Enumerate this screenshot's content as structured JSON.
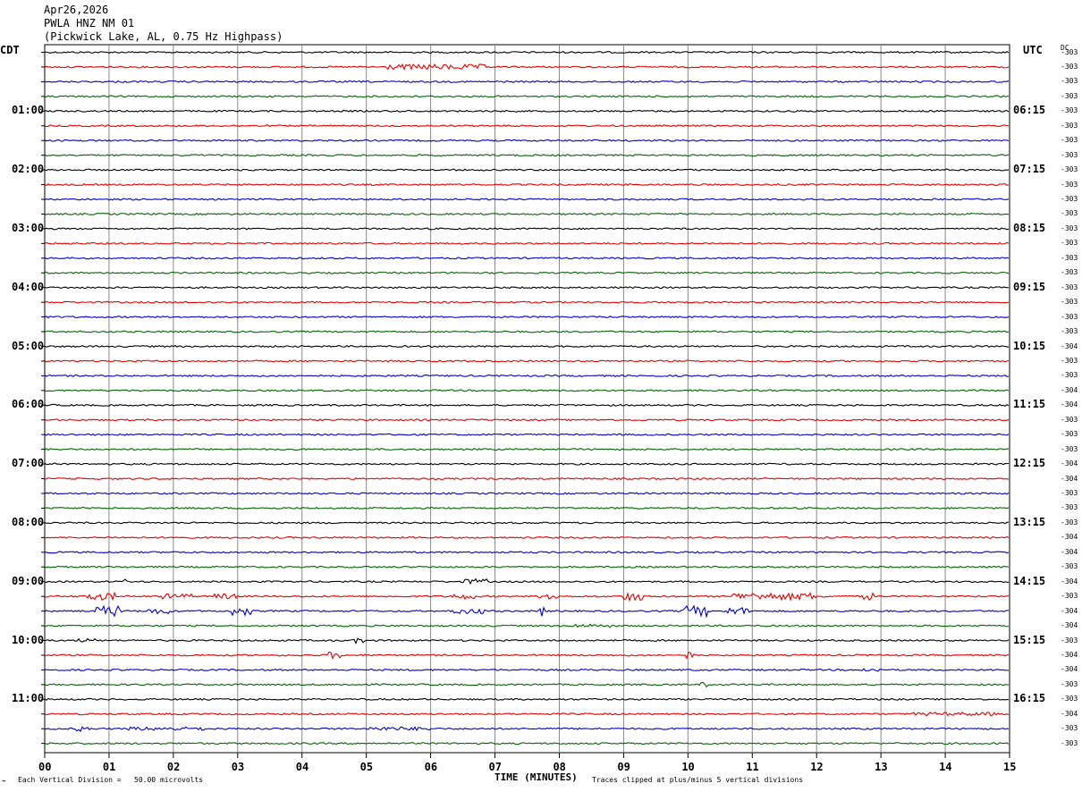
{
  "header": {
    "date": "Apr26,2026",
    "station": "PWLA HNZ NM 01",
    "location": "(Pickwick Lake, AL, 0.75 Hz Highpass)"
  },
  "left_tz": "CDT",
  "right_tz": "UTC",
  "dc_label": "DC",
  "footer": {
    "left": "Each Vertical Division =   50.00 microvolts",
    "center": "TIME (MINUTES)",
    "right": "Traces clipped at plus/minus 5 vertical divisions"
  },
  "colors": {
    "black": "#000000",
    "red": "#e00000",
    "blue": "#0000c8",
    "green": "#006400",
    "grid": "#888888"
  },
  "chart_data": {
    "type": "line",
    "title": "",
    "xlabel": "TIME (MINUTES)",
    "x_ticks": [
      "00",
      "01",
      "02",
      "03",
      "04",
      "05",
      "06",
      "07",
      "08",
      "09",
      "10",
      "11",
      "12",
      "13",
      "14",
      "15"
    ],
    "xlim": [
      0,
      15
    ],
    "trace_colors": [
      "black",
      "red",
      "blue",
      "green"
    ],
    "left_hour_labels": [
      "01:00",
      "02:00",
      "03:00",
      "04:00",
      "05:00",
      "06:00",
      "07:00",
      "08:00",
      "09:00",
      "10:00",
      "11:00"
    ],
    "right_hour_labels": [
      "06:15",
      "07:15",
      "08:15",
      "09:15",
      "10:15",
      "11:15",
      "12:15",
      "13:15",
      "14:15",
      "15:15",
      "16:15"
    ],
    "dc_offsets": [
      "-303",
      "-303",
      "-303",
      "-303",
      "-303",
      "-303",
      "-303",
      "-303",
      "-303",
      "-303",
      "-303",
      "-303",
      "-303",
      "-303",
      "-303",
      "-303",
      "-303",
      "-303",
      "-303",
      "-303",
      "-304",
      "-303",
      "-303",
      "-304",
      "-304",
      "-303",
      "-303",
      "-303",
      "-304",
      "-304",
      "-303",
      "-303",
      "-303",
      "-304",
      "-304",
      "-303",
      "-304",
      "-303",
      "-304",
      "-304",
      "-303",
      "-304",
      "-304",
      "-303",
      "-303",
      "-304",
      "-303",
      "-303"
    ],
    "events": [
      {
        "trace": 1,
        "start_min": 5.3,
        "end_min": 6.9,
        "amplitude": 3
      },
      {
        "trace": 36,
        "start_min": 1.2,
        "end_min": 1.3,
        "amplitude": 3
      },
      {
        "trace": 36,
        "start_min": 6.5,
        "end_min": 6.9,
        "amplitude": 3
      },
      {
        "trace": 37,
        "start_min": 0.6,
        "end_min": 1.1,
        "amplitude": 4
      },
      {
        "trace": 37,
        "start_min": 1.8,
        "end_min": 2.3,
        "amplitude": 3
      },
      {
        "trace": 37,
        "start_min": 2.6,
        "end_min": 3.0,
        "amplitude": 3
      },
      {
        "trace": 37,
        "start_min": 6.3,
        "end_min": 6.7,
        "amplitude": 3
      },
      {
        "trace": 37,
        "start_min": 7.7,
        "end_min": 8.0,
        "amplitude": 4
      },
      {
        "trace": 37,
        "start_min": 9.0,
        "end_min": 9.3,
        "amplitude": 5
      },
      {
        "trace": 37,
        "start_min": 10.7,
        "end_min": 11.2,
        "amplitude": 4
      },
      {
        "trace": 37,
        "start_min": 11.2,
        "end_min": 12.0,
        "amplitude": 4
      },
      {
        "trace": 37,
        "start_min": 12.7,
        "end_min": 12.9,
        "amplitude": 4
      },
      {
        "trace": 38,
        "start_min": 0.8,
        "end_min": 1.2,
        "amplitude": 6
      },
      {
        "trace": 38,
        "start_min": 1.6,
        "end_min": 2.0,
        "amplitude": 3
      },
      {
        "trace": 38,
        "start_min": 2.9,
        "end_min": 3.2,
        "amplitude": 5
      },
      {
        "trace": 38,
        "start_min": 6.3,
        "end_min": 6.9,
        "amplitude": 3
      },
      {
        "trace": 38,
        "start_min": 7.7,
        "end_min": 7.8,
        "amplitude": 6
      },
      {
        "trace": 38,
        "start_min": 9.9,
        "end_min": 10.3,
        "amplitude": 6
      },
      {
        "trace": 38,
        "start_min": 10.6,
        "end_min": 11.0,
        "amplitude": 4
      },
      {
        "trace": 39,
        "start_min": 8.2,
        "end_min": 8.8,
        "amplitude": 2
      },
      {
        "trace": 40,
        "start_min": 0.5,
        "end_min": 0.8,
        "amplitude": 2
      },
      {
        "trace": 40,
        "start_min": 4.8,
        "end_min": 5.0,
        "amplitude": 3
      },
      {
        "trace": 41,
        "start_min": 4.4,
        "end_min": 4.6,
        "amplitude": 4
      },
      {
        "trace": 41,
        "start_min": 9.9,
        "end_min": 10.1,
        "amplitude": 4
      },
      {
        "trace": 42,
        "start_min": 12.7,
        "end_min": 13.0,
        "amplitude": 2
      },
      {
        "trace": 43,
        "start_min": 10.2,
        "end_min": 10.3,
        "amplitude": 3
      },
      {
        "trace": 45,
        "start_min": 13.5,
        "end_min": 14.8,
        "amplitude": 2
      },
      {
        "trace": 46,
        "start_min": 0.5,
        "end_min": 0.7,
        "amplitude": 3
      },
      {
        "trace": 46,
        "start_min": 1.3,
        "end_min": 2.5,
        "amplitude": 2
      },
      {
        "trace": 46,
        "start_min": 5.0,
        "end_min": 6.0,
        "amplitude": 2
      }
    ]
  }
}
